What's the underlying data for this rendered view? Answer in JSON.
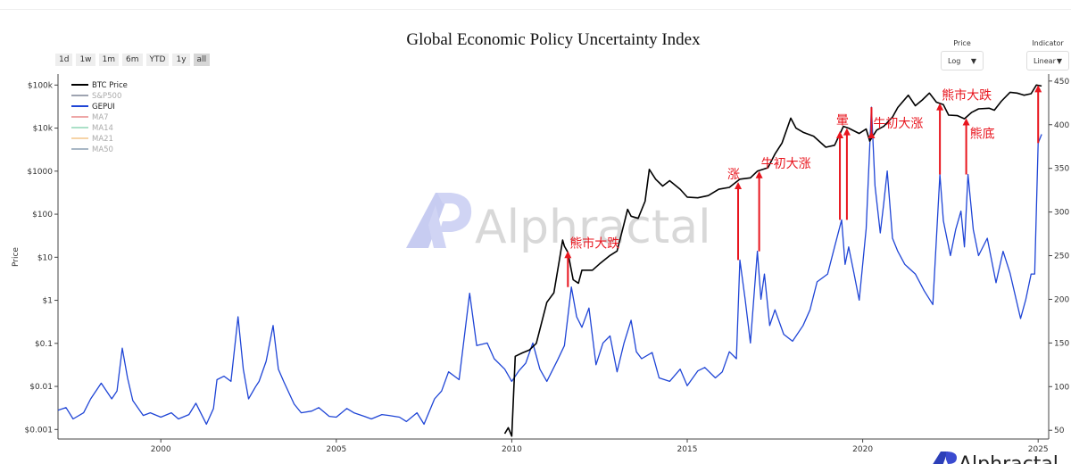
{
  "title": "Global Economic Policy Uncertainty Index",
  "range_buttons": [
    "1d",
    "1w",
    "1m",
    "6m",
    "YTD",
    "1y",
    "all"
  ],
  "active_range": "all",
  "price_control": {
    "label": "Price",
    "value": "Log"
  },
  "indicator_control": {
    "label": "Indicator",
    "value": "Linear"
  },
  "watermark": "Alphractal",
  "footer_logo": "Alphractal",
  "chart_data": {
    "type": "line",
    "title": "Global Economic Policy Uncertainty Index",
    "ylabel": "Price",
    "xlim": [
      1997.07,
      2025.3
    ],
    "x_ticks": [
      2000,
      2005,
      2010,
      2015,
      2020,
      2025
    ],
    "y_left": {
      "scale": "log",
      "range": [
        0.0006,
        180000
      ],
      "ticks": [
        {
          "v": 0.001,
          "label": "$0.001"
        },
        {
          "v": 0.01,
          "label": "$0.01"
        },
        {
          "v": 0.1,
          "label": "$0.1"
        },
        {
          "v": 1,
          "label": "$1"
        },
        {
          "v": 10,
          "label": "$10"
        },
        {
          "v": 100,
          "label": "$100"
        },
        {
          "v": 1000,
          "label": "$1000"
        },
        {
          "v": 10000,
          "label": "$10k"
        },
        {
          "v": 100000,
          "label": "$100k"
        }
      ]
    },
    "y_right": {
      "scale": "linear",
      "range": [
        40,
        458
      ],
      "ticks": [
        50,
        100,
        150,
        200,
        250,
        300,
        350,
        400,
        450
      ]
    },
    "legend": {
      "position": "top-left",
      "items": [
        {
          "name": "BTC Price",
          "color": "#000000",
          "active": true
        },
        {
          "name": "S&P500",
          "color": "#7f8597",
          "active": false
        },
        {
          "name": "GEPUI",
          "color": "#1f45d6",
          "active": true
        },
        {
          "name": "MA7",
          "color": "#e88a8a",
          "active": false
        },
        {
          "name": "MA14",
          "color": "#8fd6b5",
          "active": false
        },
        {
          "name": "MA21",
          "color": "#f3c58a",
          "active": false
        },
        {
          "name": "MA50",
          "color": "#8c9fb3",
          "active": false
        }
      ]
    },
    "series": [
      {
        "name": "BTC Price",
        "axis": "left",
        "color": "#000000",
        "points": [
          [
            2009.8,
            0.0008
          ],
          [
            2009.9,
            0.0011
          ],
          [
            2010.0,
            0.0007
          ],
          [
            2010.1,
            0.05
          ],
          [
            2010.3,
            0.06
          ],
          [
            2010.5,
            0.07
          ],
          [
            2010.7,
            0.1
          ],
          [
            2010.85,
            0.3
          ],
          [
            2011.0,
            0.9
          ],
          [
            2011.2,
            1.5
          ],
          [
            2011.35,
            8
          ],
          [
            2011.45,
            25
          ],
          [
            2011.5,
            18
          ],
          [
            2011.6,
            13
          ],
          [
            2011.75,
            3
          ],
          [
            2011.9,
            2.5
          ],
          [
            2012.0,
            5
          ],
          [
            2012.3,
            5
          ],
          [
            2012.5,
            7
          ],
          [
            2012.8,
            11
          ],
          [
            2013.0,
            14
          ],
          [
            2013.2,
            60
          ],
          [
            2013.3,
            130
          ],
          [
            2013.4,
            90
          ],
          [
            2013.6,
            80
          ],
          [
            2013.8,
            200
          ],
          [
            2013.92,
            1100
          ],
          [
            2014.1,
            650
          ],
          [
            2014.3,
            450
          ],
          [
            2014.5,
            600
          ],
          [
            2014.8,
            380
          ],
          [
            2015.0,
            250
          ],
          [
            2015.3,
            240
          ],
          [
            2015.6,
            270
          ],
          [
            2015.9,
            380
          ],
          [
            2016.2,
            420
          ],
          [
            2016.5,
            650
          ],
          [
            2016.8,
            700
          ],
          [
            2017.0,
            1000
          ],
          [
            2017.3,
            1200
          ],
          [
            2017.5,
            2500
          ],
          [
            2017.7,
            4500
          ],
          [
            2017.95,
            17000
          ],
          [
            2018.1,
            10000
          ],
          [
            2018.3,
            8000
          ],
          [
            2018.6,
            6500
          ],
          [
            2018.95,
            3600
          ],
          [
            2019.2,
            4000
          ],
          [
            2019.45,
            11000
          ],
          [
            2019.6,
            10000
          ],
          [
            2019.9,
            7500
          ],
          [
            2020.1,
            9500
          ],
          [
            2020.2,
            5000
          ],
          [
            2020.4,
            9000
          ],
          [
            2020.6,
            11000
          ],
          [
            2020.85,
            18000
          ],
          [
            2021.0,
            30000
          ],
          [
            2021.3,
            58000
          ],
          [
            2021.5,
            33000
          ],
          [
            2021.7,
            45000
          ],
          [
            2021.9,
            65000
          ],
          [
            2022.1,
            40000
          ],
          [
            2022.3,
            35000
          ],
          [
            2022.45,
            20000
          ],
          [
            2022.7,
            19500
          ],
          [
            2022.9,
            16500
          ],
          [
            2023.1,
            23000
          ],
          [
            2023.3,
            28000
          ],
          [
            2023.6,
            29000
          ],
          [
            2023.75,
            26000
          ],
          [
            2023.95,
            42000
          ],
          [
            2024.2,
            68000
          ],
          [
            2024.4,
            65000
          ],
          [
            2024.6,
            58000
          ],
          [
            2024.8,
            63000
          ],
          [
            2024.95,
            100000
          ],
          [
            2025.1,
            95000
          ]
        ]
      },
      {
        "name": "GEPUI",
        "axis": "right",
        "color": "#1f45d6",
        "points": [
          [
            1997.07,
            73
          ],
          [
            1997.3,
            76
          ],
          [
            1997.5,
            63
          ],
          [
            1997.8,
            70
          ],
          [
            1998.0,
            86
          ],
          [
            1998.3,
            104
          ],
          [
            1998.6,
            86
          ],
          [
            1998.75,
            95
          ],
          [
            1998.9,
            144
          ],
          [
            1999.05,
            110
          ],
          [
            1999.2,
            84
          ],
          [
            1999.5,
            67
          ],
          [
            1999.7,
            70
          ],
          [
            2000.0,
            65
          ],
          [
            2000.3,
            70
          ],
          [
            2000.5,
            63
          ],
          [
            2000.8,
            68
          ],
          [
            2001.0,
            81
          ],
          [
            2001.3,
            57
          ],
          [
            2001.5,
            75
          ],
          [
            2001.6,
            108
          ],
          [
            2001.8,
            112
          ],
          [
            2002.0,
            106
          ],
          [
            2002.2,
            180
          ],
          [
            2002.35,
            120
          ],
          [
            2002.5,
            86
          ],
          [
            2002.7,
            100
          ],
          [
            2002.8,
            106
          ],
          [
            2003.0,
            129
          ],
          [
            2003.2,
            170
          ],
          [
            2003.35,
            120
          ],
          [
            2003.5,
            106
          ],
          [
            2003.8,
            80
          ],
          [
            2004.0,
            70
          ],
          [
            2004.3,
            72
          ],
          [
            2004.5,
            76
          ],
          [
            2004.8,
            66
          ],
          [
            2005.0,
            65
          ],
          [
            2005.3,
            75
          ],
          [
            2005.5,
            70
          ],
          [
            2005.8,
            66
          ],
          [
            2006.0,
            63
          ],
          [
            2006.3,
            68
          ],
          [
            2006.5,
            67
          ],
          [
            2006.8,
            65
          ],
          [
            2007.0,
            60
          ],
          [
            2007.3,
            70
          ],
          [
            2007.5,
            57
          ],
          [
            2007.8,
            86
          ],
          [
            2008.0,
            95
          ],
          [
            2008.2,
            117
          ],
          [
            2008.5,
            108
          ],
          [
            2008.8,
            207
          ],
          [
            2009.0,
            147
          ],
          [
            2009.3,
            150
          ],
          [
            2009.5,
            132
          ],
          [
            2009.8,
            120
          ],
          [
            2010.0,
            106
          ],
          [
            2010.2,
            118
          ],
          [
            2010.4,
            127
          ],
          [
            2010.6,
            150
          ],
          [
            2010.8,
            120
          ],
          [
            2011.0,
            106
          ],
          [
            2011.3,
            130
          ],
          [
            2011.5,
            147
          ],
          [
            2011.7,
            214
          ],
          [
            2011.85,
            180
          ],
          [
            2012.0,
            168
          ],
          [
            2012.2,
            190
          ],
          [
            2012.4,
            125
          ],
          [
            2012.6,
            150
          ],
          [
            2012.8,
            158
          ],
          [
            2013.0,
            117
          ],
          [
            2013.2,
            150
          ],
          [
            2013.4,
            176
          ],
          [
            2013.55,
            140
          ],
          [
            2013.7,
            132
          ],
          [
            2014.0,
            139
          ],
          [
            2014.2,
            110
          ],
          [
            2014.5,
            106
          ],
          [
            2014.8,
            120
          ],
          [
            2015.0,
            101
          ],
          [
            2015.3,
            118
          ],
          [
            2015.5,
            122
          ],
          [
            2015.8,
            110
          ],
          [
            2016.0,
            117
          ],
          [
            2016.2,
            140
          ],
          [
            2016.4,
            132
          ],
          [
            2016.5,
            245
          ],
          [
            2016.65,
            200
          ],
          [
            2016.8,
            150
          ],
          [
            2017.0,
            255
          ],
          [
            2017.1,
            200
          ],
          [
            2017.2,
            229
          ],
          [
            2017.35,
            170
          ],
          [
            2017.5,
            188
          ],
          [
            2017.75,
            160
          ],
          [
            2018.0,
            152
          ],
          [
            2018.3,
            170
          ],
          [
            2018.5,
            188
          ],
          [
            2018.7,
            220
          ],
          [
            2019.0,
            229
          ],
          [
            2019.2,
            260
          ],
          [
            2019.4,
            291
          ],
          [
            2019.5,
            240
          ],
          [
            2019.6,
            260
          ],
          [
            2019.75,
            230
          ],
          [
            2019.9,
            199
          ],
          [
            2020.1,
            281
          ],
          [
            2020.25,
            420
          ],
          [
            2020.35,
            330
          ],
          [
            2020.5,
            276
          ],
          [
            2020.6,
            310
          ],
          [
            2020.7,
            347
          ],
          [
            2020.85,
            270
          ],
          [
            2021.0,
            255
          ],
          [
            2021.2,
            240
          ],
          [
            2021.5,
            229
          ],
          [
            2021.75,
            210
          ],
          [
            2022.0,
            194
          ],
          [
            2022.2,
            343
          ],
          [
            2022.3,
            290
          ],
          [
            2022.5,
            250
          ],
          [
            2022.65,
            280
          ],
          [
            2022.8,
            301
          ],
          [
            2022.9,
            260
          ],
          [
            2023.0,
            343
          ],
          [
            2023.15,
            280
          ],
          [
            2023.3,
            250
          ],
          [
            2023.55,
            270
          ],
          [
            2023.8,
            219
          ],
          [
            2024.0,
            255
          ],
          [
            2024.2,
            230
          ],
          [
            2024.5,
            178
          ],
          [
            2024.65,
            200
          ],
          [
            2024.8,
            229
          ],
          [
            2024.9,
            229
          ],
          [
            2025.0,
            379
          ],
          [
            2025.1,
            389
          ]
        ]
      }
    ],
    "annotations": [
      {
        "text": "熊市大跌",
        "x": 2011.6,
        "from_gepui": 214,
        "to_price": 14
      },
      {
        "text": "涨",
        "x": 2016.45,
        "from_gepui": 245,
        "to_price": 560
      },
      {
        "text": "牛初大涨",
        "x": 2017.05,
        "from_gepui": 255,
        "to_price": 1000
      },
      {
        "text": "",
        "x": 2019.35,
        "from_gepui": 291,
        "to_price": 8500
      },
      {
        "text": "暈",
        "x": 2019.55,
        "from_gepui": 291,
        "to_price": 10000
      },
      {
        "text": "牛初大涨",
        "x": 2020.25,
        "from_gepui": 420,
        "to_price": 8500
      },
      {
        "text": "熊市大跌",
        "x": 2022.2,
        "from_gepui": 343,
        "to_price": 38000
      },
      {
        "text": "熊底",
        "x": 2022.95,
        "from_gepui": 343,
        "to_price": 17000
      },
      {
        "text": "",
        "x": 2025.0,
        "from_gepui": 379,
        "to_price": 100000
      }
    ]
  }
}
